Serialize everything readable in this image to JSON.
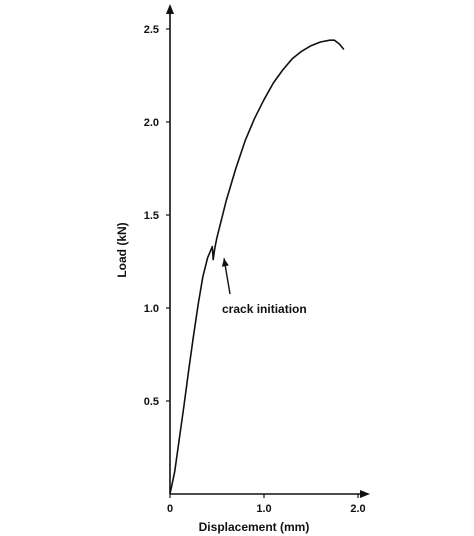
{
  "chart_data": {
    "type": "line",
    "title": "",
    "xlabel": "Displacement (mm)",
    "ylabel": "Load (kN)",
    "xlim": [
      0,
      2.0
    ],
    "ylim": [
      0,
      2.5
    ],
    "x_ticks": [
      {
        "value": 0,
        "label": "0"
      },
      {
        "value": 1.0,
        "label": "1.0"
      },
      {
        "value": 2.0,
        "label": "2.0"
      }
    ],
    "y_ticks": [
      {
        "value": 0.5,
        "label": "0.5"
      },
      {
        "value": 1.0,
        "label": "1.0"
      },
      {
        "value": 1.5,
        "label": "1.5"
      },
      {
        "value": 2.0,
        "label": "2.0"
      },
      {
        "value": 2.5,
        "label": "2.5"
      }
    ],
    "grid": false,
    "series": [
      {
        "x": [
          0,
          0.05,
          0.1,
          0.15,
          0.2,
          0.25,
          0.3,
          0.35,
          0.4,
          0.45,
          0.46,
          0.47,
          0.48,
          0.5,
          0.55,
          0.6,
          0.7,
          0.8,
          0.9,
          1.0,
          1.1,
          1.2,
          1.3,
          1.4,
          1.5,
          1.6,
          1.7,
          1.75,
          1.8,
          1.85
        ],
        "y": [
          0,
          0.12,
          0.3,
          0.48,
          0.67,
          0.85,
          1.02,
          1.17,
          1.27,
          1.33,
          1.26,
          1.3,
          1.33,
          1.38,
          1.48,
          1.58,
          1.75,
          1.9,
          2.02,
          2.12,
          2.21,
          2.28,
          2.34,
          2.38,
          2.41,
          2.43,
          2.44,
          2.44,
          2.42,
          2.39
        ],
        "color": "#111111"
      }
    ],
    "annotations": [
      {
        "text": "crack initiation",
        "x": 0.5,
        "y": 1.3
      }
    ]
  }
}
